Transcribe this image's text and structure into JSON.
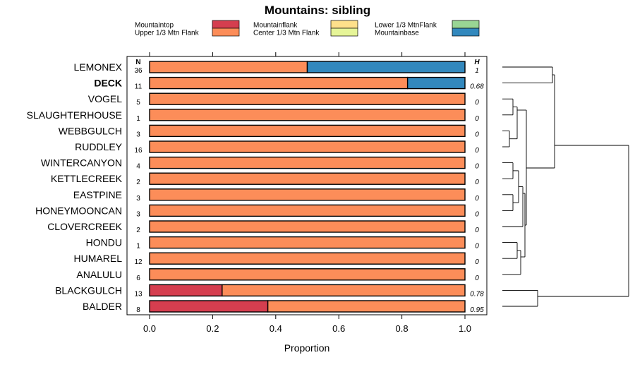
{
  "chart_data": {
    "type": "bar",
    "stacked": true,
    "orientation": "horizontal",
    "title": "Mountains: sibling",
    "xlabel": "Proportion",
    "ylabel": "",
    "xlim": [
      0,
      1
    ],
    "x_ticks": [
      "0.0",
      "0.2",
      "0.4",
      "0.6",
      "0.8",
      "1.0"
    ],
    "n_header": "N",
    "h_header": "H",
    "legend_placement": "top",
    "legend": [
      {
        "name": "Mountaintop",
        "color": "#d53e4f"
      },
      {
        "name": "Upper 1/3 Mtn Flank",
        "color": "#fc8d59"
      },
      {
        "name": "Mountainflank",
        "color": "#fee08b"
      },
      {
        "name": "Center 1/3 Mtn Flank",
        "color": "#e6f598"
      },
      {
        "name": "Lower 1/3 MtnFlank",
        "color": "#99d594"
      },
      {
        "name": "Mountainbase",
        "color": "#3288bd"
      }
    ],
    "categories": [
      "LEMONEX",
      "DECK",
      "VOGEL",
      "SLAUGHTERHOUSE",
      "WEBBGULCH",
      "RUDDLEY",
      "WINTERCANYON",
      "KETTLECREEK",
      "EASTPINE",
      "HONEYMOONCAN",
      "CLOVERCREEK",
      "HONDU",
      "HUMAREL",
      "ANALULU",
      "BLACKGULCH",
      "BALDER"
    ],
    "highlight": "DECK",
    "n": [
      "36",
      "11",
      "5",
      "1",
      "3",
      "16",
      "4",
      "2",
      "3",
      "3",
      "2",
      "1",
      "12",
      "6",
      "13",
      "8"
    ],
    "h": [
      "1",
      "0.68",
      "0",
      "0",
      "0",
      "0",
      "0",
      "0",
      "0",
      "0",
      "0",
      "0",
      "0",
      "0",
      "0.78",
      "0.95"
    ],
    "series": [
      {
        "name": "Mountaintop",
        "values": [
          0,
          0,
          0,
          0,
          0,
          0,
          0,
          0,
          0,
          0,
          0,
          0,
          0,
          0,
          0.23,
          0.375
        ]
      },
      {
        "name": "Upper 1/3 Mtn Flank",
        "values": [
          0.5,
          0.818,
          1,
          1,
          1,
          1,
          1,
          1,
          1,
          1,
          1,
          1,
          1,
          1,
          0.77,
          0.625
        ]
      },
      {
        "name": "Mountainflank",
        "values": [
          0,
          0,
          0,
          0,
          0,
          0,
          0,
          0,
          0,
          0,
          0,
          0,
          0,
          0,
          0,
          0
        ]
      },
      {
        "name": "Center 1/3 Mtn Flank",
        "values": [
          0,
          0,
          0,
          0,
          0,
          0,
          0,
          0,
          0,
          0,
          0,
          0,
          0,
          0,
          0,
          0
        ]
      },
      {
        "name": "Lower 1/3 MtnFlank",
        "values": [
          0,
          0,
          0,
          0,
          0,
          0,
          0,
          0,
          0,
          0,
          0,
          0,
          0,
          0,
          0,
          0
        ]
      },
      {
        "name": "Mountainbase",
        "values": [
          0.5,
          0.182,
          0,
          0,
          0,
          0,
          0,
          0,
          0,
          0,
          0,
          0,
          0,
          0,
          0,
          0
        ]
      }
    ]
  }
}
